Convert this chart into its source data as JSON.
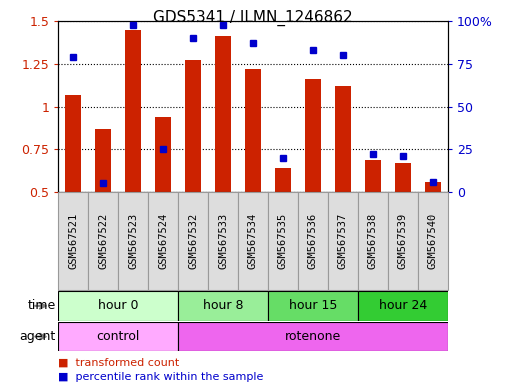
{
  "title": "GDS5341 / ILMN_1246862",
  "samples": [
    "GSM567521",
    "GSM567522",
    "GSM567523",
    "GSM567524",
    "GSM567532",
    "GSM567533",
    "GSM567534",
    "GSM567535",
    "GSM567536",
    "GSM567537",
    "GSM567538",
    "GSM567539",
    "GSM567540"
  ],
  "transformed_count": [
    1.07,
    0.87,
    1.45,
    0.94,
    1.27,
    1.41,
    1.22,
    0.64,
    1.16,
    1.12,
    0.69,
    0.67,
    0.56
  ],
  "percentile_rank": [
    79,
    5,
    98,
    25,
    90,
    98,
    87,
    20,
    83,
    80,
    22,
    21,
    6
  ],
  "ylim_left": [
    0.5,
    1.5
  ],
  "ylim_right": [
    0,
    100
  ],
  "yticks_left": [
    0.5,
    0.75,
    1.0,
    1.25,
    1.5
  ],
  "ytick_labels_left": [
    "0.5",
    "0.75",
    "1",
    "1.25",
    "1.5"
  ],
  "yticks_right": [
    0,
    25,
    50,
    75,
    100
  ],
  "ytick_labels_right": [
    "0",
    "25",
    "50",
    "75",
    "100%"
  ],
  "bar_color": "#cc2200",
  "dot_color": "#0000cc",
  "time_groups": [
    {
      "label": "hour 0",
      "start": 0,
      "end": 4,
      "color": "#ccffcc"
    },
    {
      "label": "hour 8",
      "start": 4,
      "end": 7,
      "color": "#99ee99"
    },
    {
      "label": "hour 15",
      "start": 7,
      "end": 10,
      "color": "#66dd66"
    },
    {
      "label": "hour 24",
      "start": 10,
      "end": 13,
      "color": "#33cc33"
    }
  ],
  "agent_groups": [
    {
      "label": "control",
      "start": 0,
      "end": 4,
      "color": "#ffaaff"
    },
    {
      "label": "rotenone",
      "start": 4,
      "end": 13,
      "color": "#ee66ee"
    }
  ],
  "legend_red_label": "transformed count",
  "legend_blue_label": "percentile rank within the sample",
  "bg_color": "#ffffff",
  "tick_label_color_left": "#cc2200",
  "tick_label_color_right": "#0000cc",
  "bar_bottom": 0.5,
  "sample_box_color": "#dddddd",
  "sample_box_edge": "#999999"
}
